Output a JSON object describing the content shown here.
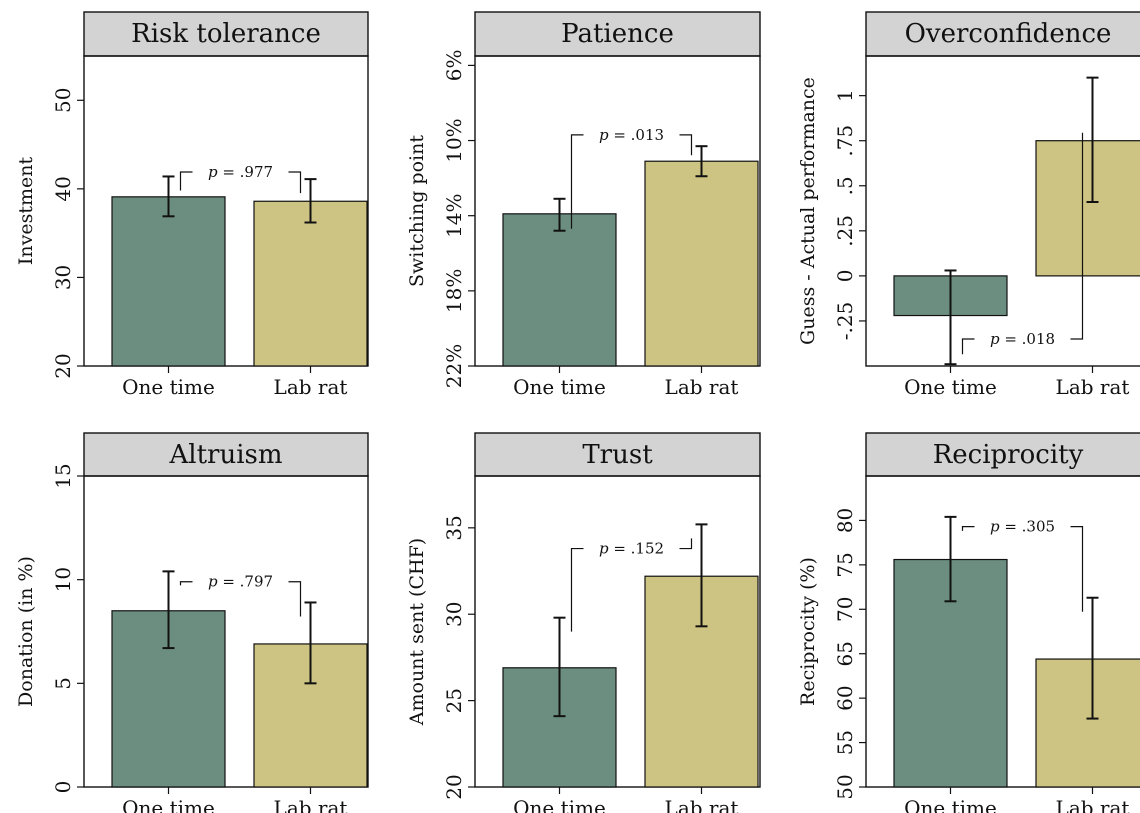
{
  "colors": {
    "one_time": "#6b8e80",
    "lab_rat": "#cdc382",
    "strip": "#d3d3d3"
  },
  "chart_data": [
    {
      "type": "bar",
      "title": "Risk tolerance",
      "ylabel": "Investment",
      "categories": [
        "One time",
        "Lab rat"
      ],
      "values": [
        39.1,
        38.6
      ],
      "error_low": [
        36.9,
        36.2
      ],
      "error_high": [
        41.4,
        41.1
      ],
      "ylim": [
        20,
        55
      ],
      "yticks": [
        20,
        30,
        40,
        50
      ],
      "ytick_labels": [
        "20",
        "30",
        "40",
        "50"
      ],
      "reversed": false,
      "bracket_level": 41.9,
      "p_text": ".977"
    },
    {
      "type": "bar",
      "title": "Patience",
      "ylabel": "Switching point",
      "categories": [
        "One time",
        "Lab rat"
      ],
      "values": [
        13.9,
        11.1
      ],
      "error_low": [
        14.8,
        11.9
      ],
      "error_high": [
        13.1,
        10.3
      ],
      "ylim": [
        22,
        5.5
      ],
      "yticks": [
        22,
        18,
        14,
        10,
        6
      ],
      "ytick_labels": [
        "22%",
        "18%",
        "14%",
        "10%",
        "6%"
      ],
      "reversed": true,
      "bracket_level": 9.7,
      "p_text": ".013"
    },
    {
      "type": "bar",
      "title": "Overconfidence",
      "ylabel": "Guess - Actual performance",
      "categories": [
        "One time",
        "Lab rat"
      ],
      "values": [
        -0.22,
        0.75
      ],
      "error_low": [
        -0.49,
        0.41
      ],
      "error_high": [
        0.03,
        1.1
      ],
      "ylim": [
        -0.5,
        1.22
      ],
      "yticks": [
        -0.25,
        0,
        0.25,
        0.5,
        0.75,
        1
      ],
      "ytick_labels": [
        "-.25",
        "0",
        ".25",
        ".5",
        ".75",
        "1"
      ],
      "reversed": false,
      "bracket_level": -0.35,
      "bracket_below": true,
      "p_text": ".018"
    },
    {
      "type": "bar",
      "title": "Altruism",
      "ylabel": "Donation (in %)",
      "categories": [
        "One time",
        "Lab rat"
      ],
      "values": [
        8.5,
        6.9
      ],
      "error_low": [
        6.7,
        5.0
      ],
      "error_high": [
        10.4,
        8.9
      ],
      "ylim": [
        0,
        15
      ],
      "yticks": [
        0,
        5,
        10,
        15
      ],
      "ytick_labels": [
        "0",
        "5",
        "10",
        "15"
      ],
      "reversed": false,
      "bracket_level": 9.9,
      "p_text": ".797"
    },
    {
      "type": "bar",
      "title": "Trust",
      "ylabel": "Amount sent (CHF)",
      "categories": [
        "One time",
        "Lab rat"
      ],
      "values": [
        26.9,
        32.2
      ],
      "error_low": [
        24.1,
        29.3
      ],
      "error_high": [
        29.8,
        35.2
      ],
      "ylim": [
        20,
        38
      ],
      "yticks": [
        20,
        25,
        30,
        35
      ],
      "ytick_labels": [
        "20",
        "25",
        "30",
        "35"
      ],
      "reversed": false,
      "bracket_level": 33.8,
      "p_text": ".152"
    },
    {
      "type": "bar",
      "title": "Reciprocity",
      "ylabel": "Reciprocity (%)",
      "categories": [
        "One time",
        "Lab rat"
      ],
      "values": [
        75.6,
        64.4
      ],
      "error_low": [
        70.9,
        57.7
      ],
      "error_high": [
        80.4,
        71.3
      ],
      "ylim": [
        50,
        85
      ],
      "yticks": [
        50,
        55,
        60,
        65,
        70,
        75,
        80
      ],
      "ytick_labels": [
        "50",
        "55",
        "60",
        "65",
        "70",
        "75",
        "80"
      ],
      "reversed": false,
      "bracket_level": 79.3,
      "p_text": ".305"
    }
  ]
}
